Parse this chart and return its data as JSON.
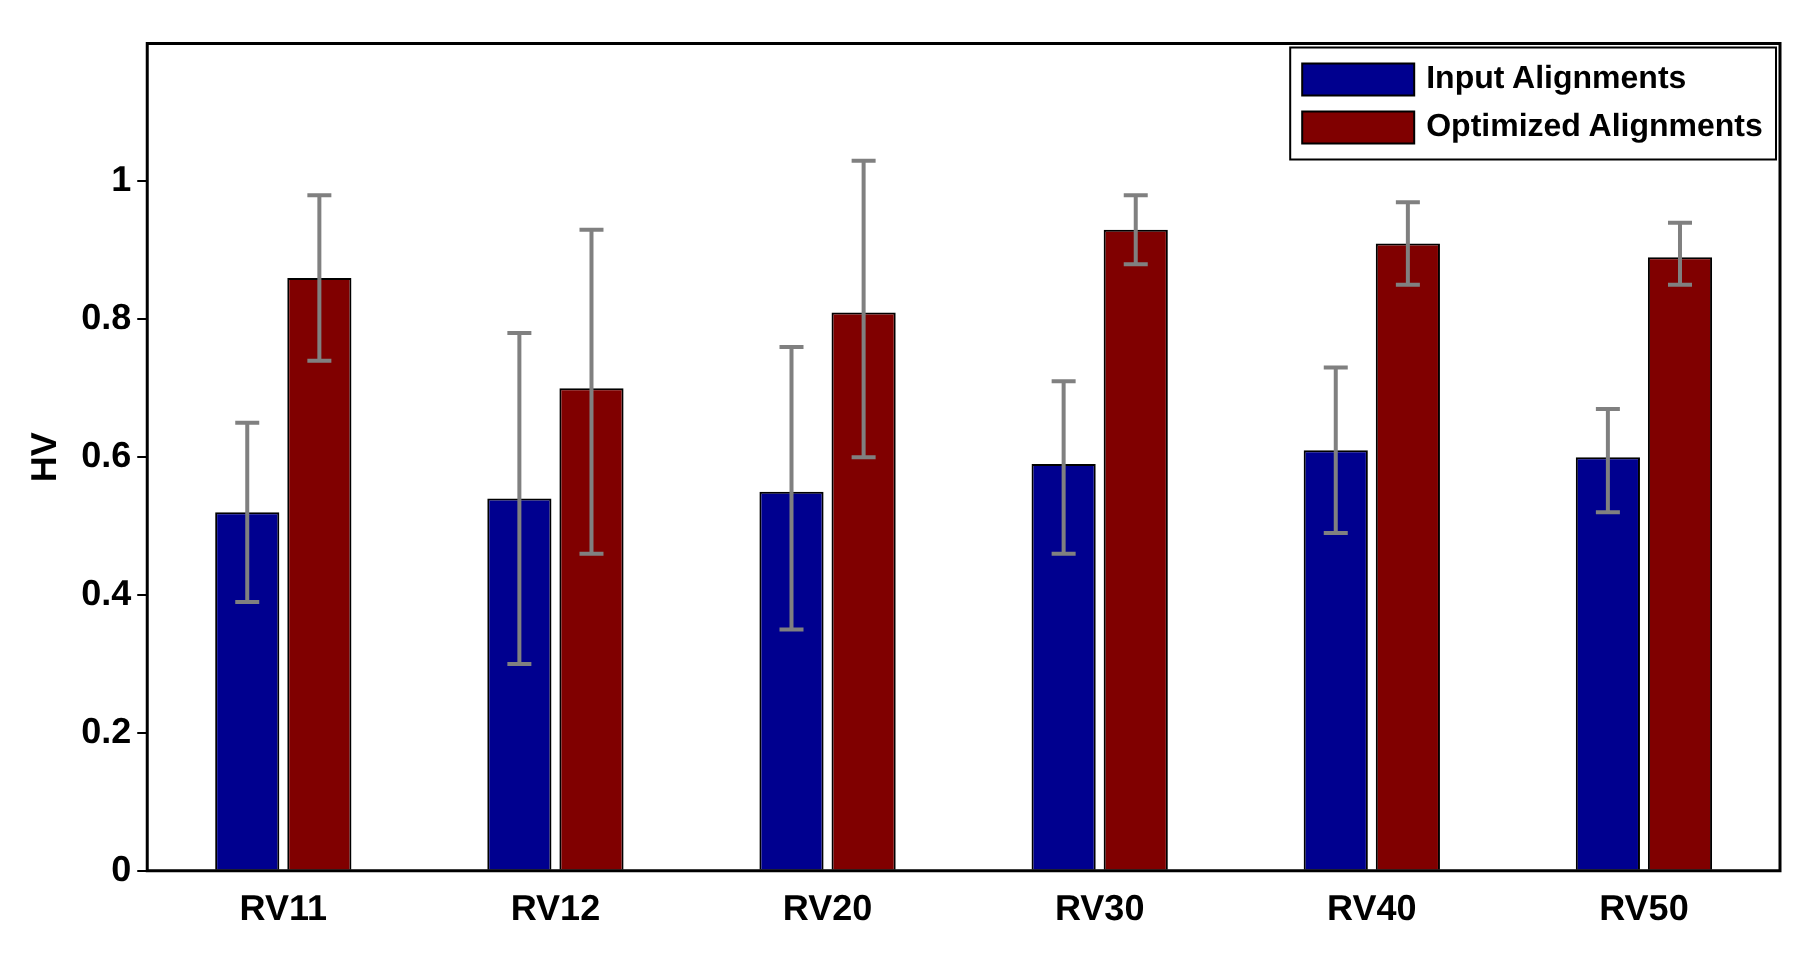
{
  "chart_data": {
    "type": "bar",
    "ylabel": "HV",
    "categories": [
      "RV11",
      "RV12",
      "RV20",
      "RV30",
      "RV40",
      "RV50"
    ],
    "series": [
      {
        "name": "Input Alignments",
        "color": "#00008f",
        "values": [
          0.52,
          0.54,
          0.55,
          0.59,
          0.61,
          0.6
        ],
        "errors": [
          [
            0.39,
            0.65
          ],
          [
            0.3,
            0.78
          ],
          [
            0.35,
            0.76
          ],
          [
            0.46,
            0.71
          ],
          [
            0.49,
            0.73
          ],
          [
            0.52,
            0.67
          ]
        ]
      },
      {
        "name": "Optimized Alignments",
        "color": "#800000",
        "values": [
          0.86,
          0.7,
          0.81,
          0.93,
          0.91,
          0.89
        ],
        "errors": [
          [
            0.74,
            0.98
          ],
          [
            0.46,
            0.93
          ],
          [
            0.6,
            1.03
          ],
          [
            0.88,
            0.98
          ],
          [
            0.85,
            0.97
          ],
          [
            0.85,
            0.94
          ]
        ]
      }
    ],
    "ylim": [
      0,
      1.2
    ],
    "yticks": [
      0,
      0.2,
      0.4,
      0.6,
      0.8,
      1
    ],
    "grid": false,
    "legend": "top right"
  }
}
